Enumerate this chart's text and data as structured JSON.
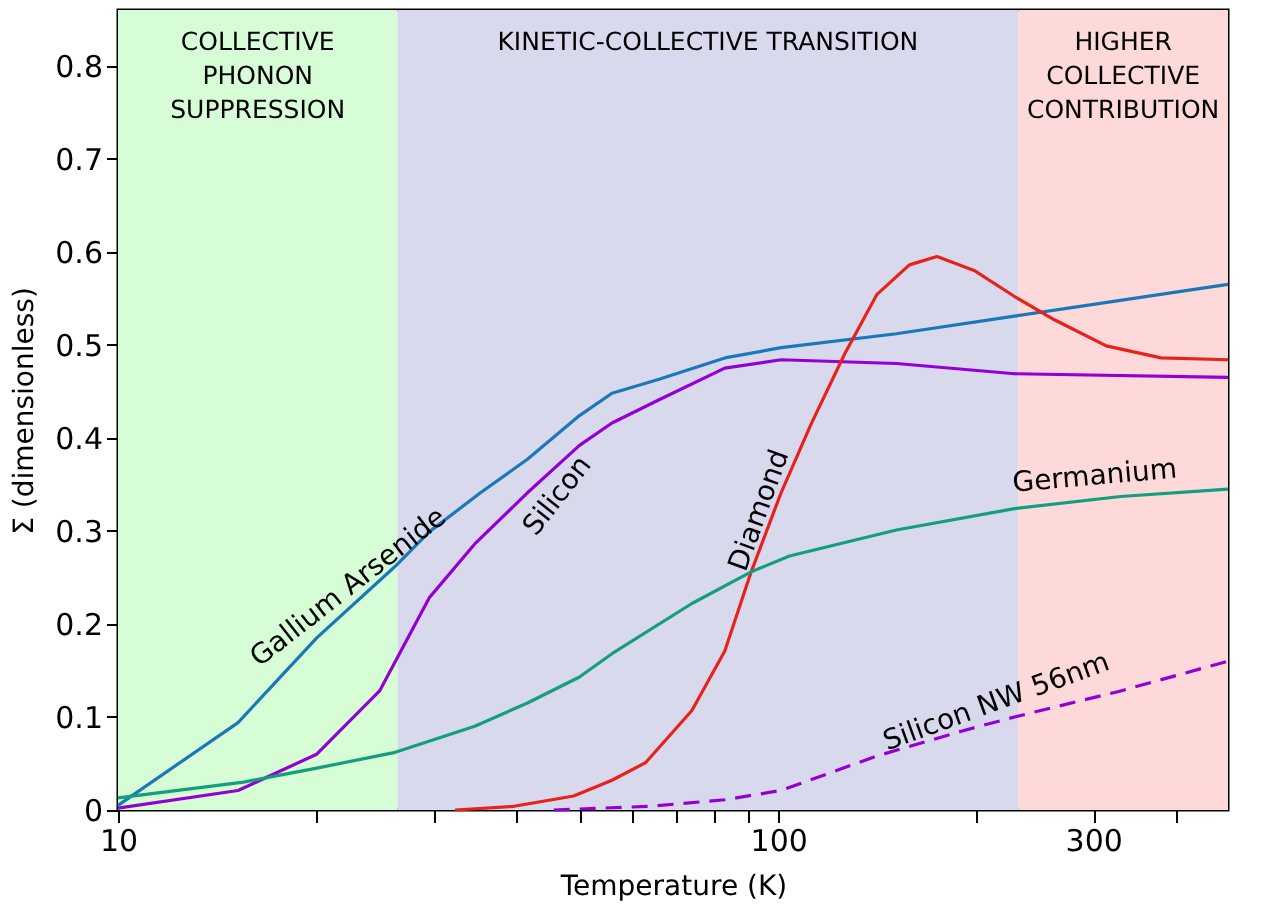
{
  "chart_data": {
    "type": "line",
    "xlabel": "Temperature (K)",
    "ylabel": "Σ (dimensionless)",
    "log": "x",
    "grid": false,
    "line_style": "solid",
    "marker": "none",
    "xlim": [
      10,
      480
    ],
    "ylim": [
      0,
      0.86
    ],
    "xticks": [
      10,
      {
        "value": 20,
        "label": null
      },
      {
        "value": 30,
        "label": null
      },
      {
        "value": 40,
        "label": null
      },
      {
        "value": 50,
        "label": null
      },
      {
        "value": 60,
        "label": null
      },
      {
        "value": 70,
        "label": null
      },
      {
        "value": 80,
        "label": null
      },
      {
        "value": 90,
        "label": null
      },
      100,
      {
        "value": 200,
        "label": null
      },
      300,
      {
        "value": 400,
        "label": null
      }
    ],
    "yticks": [
      {
        "value": 0,
        "label": "0"
      },
      0.1,
      0.2,
      0.3,
      0.4,
      0.5,
      0.6,
      0.7,
      0.8
    ],
    "bands": [
      {
        "axis": "x",
        "from": 10,
        "to": 26.5,
        "label": "COLLECTIVE\nPHONON\nSUPPRESSION",
        "color": "#d7fdd7"
      },
      {
        "axis": "x",
        "from": 26.5,
        "to": 231,
        "label": "KINETIC-COLLECTIVE TRANSITION",
        "color": "#d9d9ee"
      },
      {
        "axis": "x",
        "from": 231,
        "to": 480,
        "label": "HIGHER\nCOLLECTIVE\nCONTRIBUTION",
        "color": "#fdd9d9"
      }
    ],
    "series": [
      {
        "name": "Gallium Arsenide",
        "color": "#1a78b8",
        "x": [
          10,
          15.2,
          20,
          26.3,
          29.6,
          35.4,
          41.7,
          50,
          56,
          66,
          83,
          101,
          151,
          228,
          480
        ],
        "values": [
          0.005,
          0.094,
          0.185,
          0.262,
          0.299,
          0.341,
          0.377,
          0.424,
          0.448,
          0.463,
          0.486,
          0.497,
          0.512,
          0.531,
          0.565
        ]
      },
      {
        "name": "Silicon",
        "color": "#9400d3",
        "x": [
          10,
          15.2,
          20,
          24.9,
          29.6,
          34.7,
          41.7,
          50,
          56,
          66,
          83,
          101,
          151,
          228,
          480
        ],
        "values": [
          0.002,
          0.021,
          0.06,
          0.128,
          0.228,
          0.286,
          0.341,
          0.392,
          0.416,
          0.441,
          0.475,
          0.484,
          0.48,
          0.469,
          0.465
        ]
      },
      {
        "name": "Diamond",
        "color": "#e8221a",
        "x": [
          32.4,
          39.8,
          49,
          56,
          63,
          74,
          83,
          91,
          101,
          112,
          126,
          141,
          158,
          174,
          198,
          228,
          262,
          314,
          380,
          480
        ],
        "values": [
          0,
          0.004,
          0.015,
          0.032,
          0.051,
          0.107,
          0.171,
          0.256,
          0.341,
          0.414,
          0.49,
          0.554,
          0.586,
          0.595,
          0.58,
          0.552,
          0.527,
          0.499,
          0.486,
          0.484
        ]
      },
      {
        "name": "Germanium",
        "color": "#139e7e",
        "x": [
          10,
          15.5,
          20,
          26.3,
          34.7,
          41.7,
          50,
          56,
          74,
          91,
          104,
          151,
          228,
          330,
          480
        ],
        "values": [
          0.013,
          0.03,
          0.045,
          0.062,
          0.09,
          0.115,
          0.143,
          0.168,
          0.222,
          0.256,
          0.273,
          0.301,
          0.324,
          0.337,
          0.345
        ]
      },
      {
        "name": "Silicon NW 56nm",
        "color": "#9400d3",
        "line_style": "dashed",
        "x": [
          45.7,
          64,
          83,
          101,
          141,
          190,
          228,
          330,
          480
        ],
        "values": [
          0,
          0.004,
          0.011,
          0.021,
          0.058,
          0.085,
          0.1,
          0.128,
          0.16
        ]
      }
    ]
  }
}
